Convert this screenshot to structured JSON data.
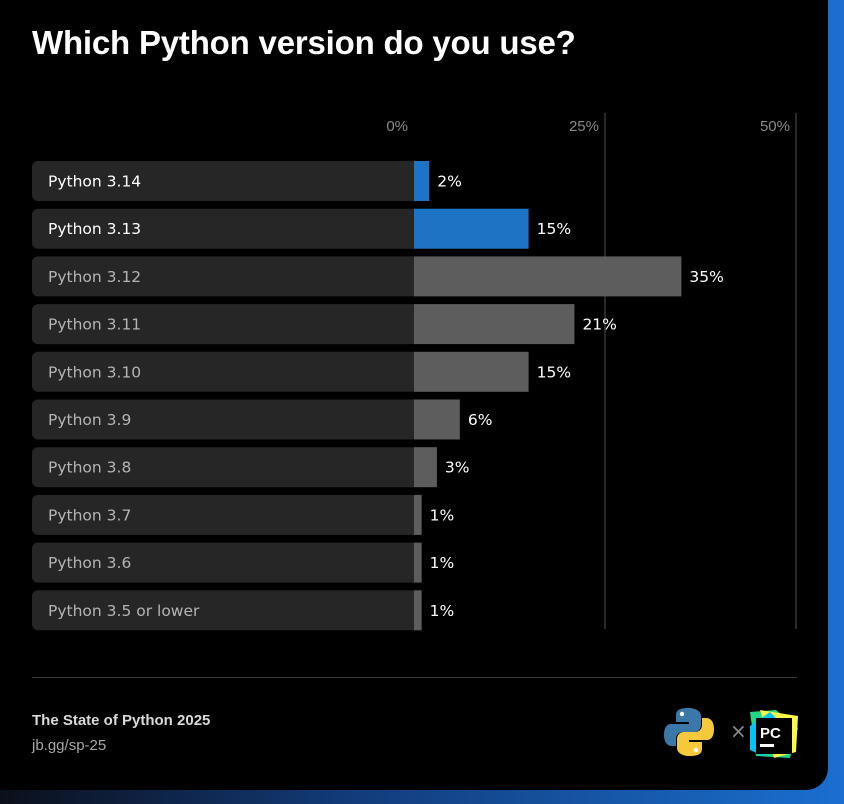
{
  "header": {
    "title": "Which Python version do you use?"
  },
  "footer": {
    "source_title": "The State of Python 2025",
    "source_url": "jb.gg/sp-25",
    "separator_glyph": "×",
    "pycharm_label": "PC"
  },
  "colors": {
    "highlight": "#1e74c4",
    "default_bar": "#5d5d5d",
    "track": "#262626",
    "grid": "#555555"
  },
  "chart_data": {
    "type": "bar",
    "orientation": "horizontal",
    "title": "Which Python version do you use?",
    "categories": [
      "Python 3.14",
      "Python 3.13",
      "Python 3.12",
      "Python 3.11",
      "Python 3.10",
      "Python 3.9",
      "Python 3.8",
      "Python 3.7",
      "Python 3.6",
      "Python 3.5 or lower"
    ],
    "values": [
      2,
      15,
      35,
      21,
      15,
      6,
      3,
      1,
      1,
      1
    ],
    "value_labels": [
      "2%",
      "15%",
      "35%",
      "21%",
      "15%",
      "6%",
      "3%",
      "1%",
      "1%",
      "1%"
    ],
    "highlighted": [
      true,
      true,
      false,
      false,
      false,
      false,
      false,
      false,
      false,
      false
    ],
    "xlim": [
      0,
      50
    ],
    "xticks": [
      0,
      25,
      50
    ],
    "xtick_labels": [
      "0%",
      "25%",
      "50%"
    ],
    "unit": "%",
    "grid": true
  }
}
